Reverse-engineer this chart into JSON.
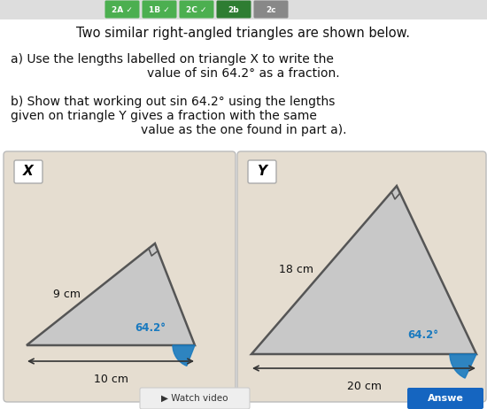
{
  "bg_color": "#ffffff",
  "box_bg": "#e5ddd0",
  "text_color": "#111111",
  "angle_color": "#1a7abf",
  "tri_fill": "#c8c8c8",
  "tri_edge": "#555555",
  "title": "Two similar right-angled triangles are shown below.",
  "part_a_1": "a) Use the lengths labelled on triangle X to write the",
  "part_a_2": "value of sin 64.2° as a fraction.",
  "part_b_1": "b) Show that working out sin 64.2° using the lengths",
  "part_b_2": "given on triangle Y gives a fraction with the same",
  "part_b_3": "value as the one found in part a).",
  "label_x": "X",
  "label_y": "Y",
  "hyp_x": "9 cm",
  "base_x": "10 cm",
  "angle_x": "64.2°",
  "hyp_y": "18 cm",
  "base_y": "20 cm",
  "angle_y": "64.2°",
  "answer_color": "#1565c0",
  "nav_bg": "#dddddd",
  "btn_green": "#4caf50",
  "btn_dark": "#2e7d32",
  "btn_grey": "#888888"
}
